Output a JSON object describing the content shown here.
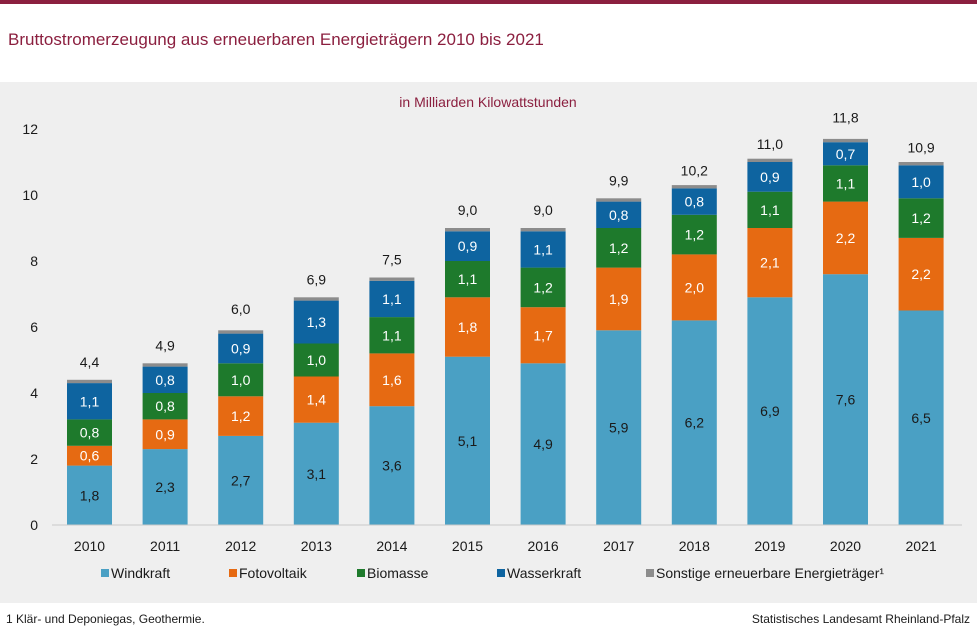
{
  "header": {
    "title": "Bruttostromerzeugung aus erneuerbaren Energieträgern 2010 bis 2021"
  },
  "chart_data": {
    "type": "bar",
    "stacked": true,
    "subtitle": "in Milliarden Kilowattstunden",
    "categories": [
      "2010",
      "2011",
      "2012",
      "2013",
      "2014",
      "2015",
      "2016",
      "2017",
      "2018",
      "2019",
      "2020",
      "2021"
    ],
    "series": [
      {
        "name": "Windkraft",
        "color": "#4aa0c4",
        "values": [
          1.8,
          2.3,
          2.7,
          3.1,
          3.6,
          5.1,
          4.9,
          5.9,
          6.2,
          6.9,
          7.6,
          6.5
        ],
        "labels": [
          "1,8",
          "2,3",
          "2,7",
          "3,1",
          "3,6",
          "5,1",
          "4,9",
          "5,9",
          "6,2",
          "6,9",
          "7,6",
          "6,5"
        ]
      },
      {
        "name": "Fotovoltaik",
        "color": "#e66a12",
        "values": [
          0.6,
          0.9,
          1.2,
          1.4,
          1.6,
          1.8,
          1.7,
          1.9,
          2.0,
          2.1,
          2.2,
          2.2
        ],
        "labels": [
          "0,6",
          "0,9",
          "1,2",
          "1,4",
          "1,6",
          "1,8",
          "1,7",
          "1,9",
          "2,0",
          "2,1",
          "2,2",
          "2,2"
        ]
      },
      {
        "name": "Biomasse",
        "color": "#1e7a2c",
        "values": [
          0.8,
          0.8,
          1.0,
          1.0,
          1.1,
          1.1,
          1.2,
          1.2,
          1.2,
          1.1,
          1.1,
          1.2
        ],
        "labels": [
          "0,8",
          "0,8",
          "1,0",
          "1,0",
          "1,1",
          "1,1",
          "1,2",
          "1,2",
          "1,2",
          "1,1",
          "1,1",
          "1,2"
        ]
      },
      {
        "name": "Wasserkraft",
        "color": "#0e64a0",
        "values": [
          1.1,
          0.8,
          0.9,
          1.3,
          1.1,
          0.9,
          1.1,
          0.8,
          0.8,
          0.9,
          0.7,
          1.0
        ],
        "labels": [
          "1,1",
          "0,8",
          "0,9",
          "1,3",
          "1,1",
          "0,9",
          "1,1",
          "0,8",
          "0,8",
          "0,9",
          "0,7",
          "1,0"
        ]
      },
      {
        "name": "Sonstige erneuerbare Energieträger¹",
        "color": "#8c8c8c",
        "values": [
          0.1,
          0.1,
          0.1,
          0.1,
          0.1,
          0.1,
          0.1,
          0.1,
          0.1,
          0.1,
          0.1,
          0.1
        ]
      }
    ],
    "totals": [
      "4,4",
      "4,9",
      "6,0",
      "6,9",
      "7,5",
      "9,0",
      "9,0",
      "9,9",
      "10,2",
      "11,0",
      "11,8",
      "10,9"
    ],
    "total_values": [
      4.4,
      4.9,
      6.0,
      6.9,
      7.5,
      9.0,
      9.0,
      9.9,
      10.2,
      11.0,
      11.8,
      10.9
    ],
    "ylim": [
      0,
      12
    ],
    "yticks": [
      "0",
      "2",
      "4",
      "6",
      "8",
      "10",
      "12"
    ],
    "ytick_values": [
      0,
      2,
      4,
      6,
      8,
      10,
      12
    ],
    "grid": false,
    "legend_position": "bottom"
  },
  "footer": {
    "footnote": "1 Klär- und Deponiegas, Geothermie.",
    "source": "Statistisches Landesamt Rheinland-Pfalz"
  }
}
